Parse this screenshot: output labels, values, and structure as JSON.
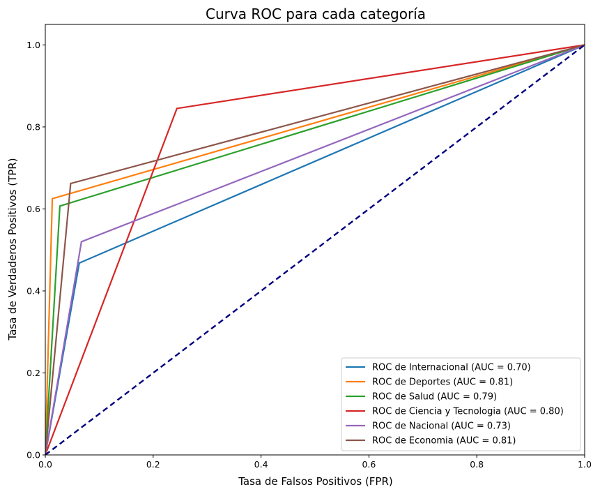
{
  "chart_data": {
    "type": "line",
    "title": "Curva ROC para cada categoría",
    "xlabel": "Tasa de Falsos Positivos (FPR)",
    "ylabel": "Tasa de Verdaderos Positivos (TPR)",
    "xlim": [
      0.0,
      1.0
    ],
    "ylim": [
      0.0,
      1.05
    ],
    "xticks": [
      "0.0",
      "0.2",
      "0.4",
      "0.6",
      "0.8",
      "1.0"
    ],
    "yticks": [
      "0.0",
      "0.2",
      "0.4",
      "0.6",
      "0.8",
      "1.0"
    ],
    "grid": false,
    "legend_position": "lower-right",
    "series": [
      {
        "name": "ROC de Internacional (AUC = 0.70)",
        "color": "#1f77b4",
        "x": [
          0,
          0.063,
          1
        ],
        "y": [
          0,
          0.468,
          1
        ]
      },
      {
        "name": "ROC de Deportes (AUC = 0.81)",
        "color": "#ff7f0e",
        "x": [
          0,
          0.013,
          1
        ],
        "y": [
          0,
          0.625,
          1
        ]
      },
      {
        "name": "ROC de Salud (AUC = 0.79)",
        "color": "#2ca02c",
        "x": [
          0,
          0.027,
          1
        ],
        "y": [
          0,
          0.607,
          1
        ]
      },
      {
        "name": "ROC de Ciencia y Tecnologia (AUC = 0.80)",
        "color": "#d62728",
        "x": [
          0,
          0.244,
          1
        ],
        "y": [
          0,
          0.845,
          1
        ]
      },
      {
        "name": "ROC de Nacional (AUC = 0.73)",
        "color": "#9467bd",
        "x": [
          0,
          0.067,
          1
        ],
        "y": [
          0,
          0.52,
          1
        ]
      },
      {
        "name": "ROC de Economia (AUC = 0.81)",
        "color": "#8c564b",
        "x": [
          0,
          0.047,
          1
        ],
        "y": [
          0,
          0.662,
          1
        ]
      }
    ],
    "reference_line": {
      "color": "#000080",
      "style": "dashed",
      "x": [
        0,
        1
      ],
      "y": [
        0,
        1
      ]
    }
  }
}
